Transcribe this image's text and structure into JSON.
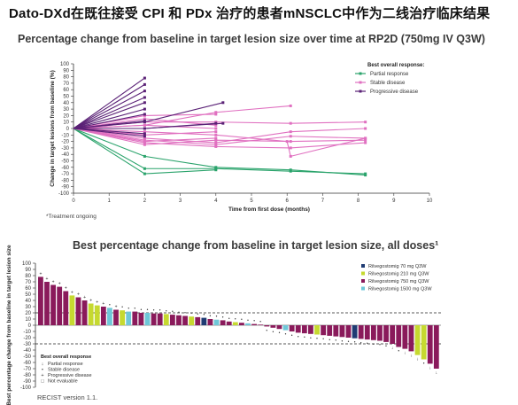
{
  "page": {
    "title": "Dato-DXd在既往接受 CPI 和 PDx 治疗的患者mNSCLC中作为二线治疗临床结果"
  },
  "chart_data": [
    {
      "type": "line",
      "title": "Percentage change from baseline in target lesion size over time at RP2D (750mg IV Q3W)",
      "xlabel": "Time from first dose (months)",
      "ylabel": "Change in target lesions from baseline (%)",
      "xlim": [
        0,
        10
      ],
      "ylim": [
        -100,
        100
      ],
      "x_ticks": [
        0,
        1,
        2,
        3,
        4,
        5,
        6,
        7,
        8,
        9,
        10
      ],
      "y_ticks": [
        100,
        90,
        80,
        70,
        60,
        50,
        40,
        30,
        20,
        10,
        0,
        -10,
        -20,
        -30,
        -40,
        -50,
        -60,
        -70,
        -80,
        -90,
        -100
      ],
      "legend": {
        "title": "Best overall response:",
        "position": "top-right",
        "entries": [
          {
            "label": "Partial response",
            "color": "#2aa36b"
          },
          {
            "label": "Stable disease",
            "color": "#e070c0"
          },
          {
            "label": "Progressive disease",
            "color": "#5a2176"
          }
        ]
      },
      "footnote": "*Treatment ongoing",
      "series": [
        {
          "group": "pr",
          "x": [
            0,
            2,
            4,
            6.1,
            8.2
          ],
          "y": [
            0,
            -43,
            -60,
            -64,
            -72
          ]
        },
        {
          "group": "pr",
          "x": [
            0,
            2,
            4
          ],
          "y": [
            0,
            -70,
            -64
          ]
        },
        {
          "group": "pr",
          "x": [
            0,
            2,
            4,
            6.1,
            8.2
          ],
          "y": [
            0,
            -62,
            -62,
            -66,
            -70
          ]
        },
        {
          "group": "sd",
          "x": [
            0,
            2,
            4,
            6.1,
            8.2
          ],
          "y": [
            0,
            10,
            10,
            8,
            10
          ]
        },
        {
          "group": "sd",
          "x": [
            0,
            2,
            4,
            6.1
          ],
          "y": [
            0,
            5,
            25,
            35
          ]
        },
        {
          "group": "sd",
          "x": [
            0,
            2,
            4,
            6,
            6.1,
            8.2
          ],
          "y": [
            0,
            -5,
            -10,
            -20,
            -43,
            -15
          ]
        },
        {
          "group": "sd",
          "x": [
            0,
            2,
            4,
            6.1,
            8.2
          ],
          "y": [
            0,
            -15,
            -22,
            -5,
            0
          ]
        },
        {
          "group": "sd",
          "x": [
            0,
            2,
            4,
            6.1,
            8.2
          ],
          "y": [
            0,
            -18,
            -25,
            -12,
            -15
          ]
        },
        {
          "group": "sd",
          "x": [
            0,
            2,
            4
          ],
          "y": [
            0,
            15,
            5
          ]
        },
        {
          "group": "sd",
          "x": [
            0,
            2,
            4
          ],
          "y": [
            0,
            -10,
            -5
          ]
        },
        {
          "group": "sd",
          "x": [
            0,
            2,
            4
          ],
          "y": [
            0,
            -20,
            -15
          ]
        },
        {
          "group": "sd",
          "x": [
            0,
            2,
            4
          ],
          "y": [
            0,
            5,
            0
          ]
        },
        {
          "group": "sd",
          "x": [
            0,
            2,
            4
          ],
          "y": [
            0,
            20,
            22
          ]
        },
        {
          "group": "sd",
          "x": [
            0,
            2,
            4,
            6.1,
            8.2
          ],
          "y": [
            0,
            -25,
            -18,
            -20,
            -18
          ]
        },
        {
          "group": "sd",
          "x": [
            0,
            2,
            4,
            6.1,
            8.2
          ],
          "y": [
            0,
            -22,
            -28,
            -30,
            -22
          ]
        },
        {
          "group": "pd",
          "x": [
            0,
            2
          ],
          "y": [
            0,
            78
          ]
        },
        {
          "group": "pd",
          "x": [
            0,
            2
          ],
          "y": [
            0,
            68
          ]
        },
        {
          "group": "pd",
          "x": [
            0,
            2
          ],
          "y": [
            0,
            58
          ]
        },
        {
          "group": "pd",
          "x": [
            0,
            2
          ],
          "y": [
            0,
            48
          ]
        },
        {
          "group": "pd",
          "x": [
            0,
            2
          ],
          "y": [
            0,
            40
          ]
        },
        {
          "group": "pd",
          "x": [
            0,
            2
          ],
          "y": [
            0,
            30
          ]
        },
        {
          "group": "pd",
          "x": [
            0,
            2
          ],
          "y": [
            0,
            22
          ]
        },
        {
          "group": "pd",
          "x": [
            0,
            2
          ],
          "y": [
            0,
            12
          ]
        },
        {
          "group": "pd",
          "x": [
            0,
            2,
            4.2
          ],
          "y": [
            0,
            10,
            40
          ]
        },
        {
          "group": "pd",
          "x": [
            0,
            2
          ],
          "y": [
            0,
            -8
          ]
        },
        {
          "group": "pd",
          "x": [
            0,
            2
          ],
          "y": [
            0,
            -12
          ]
        },
        {
          "group": "pd",
          "x": [
            0,
            2,
            4
          ],
          "y": [
            0,
            0,
            8
          ]
        },
        {
          "group": "pd",
          "x": [
            0,
            2,
            4.2
          ],
          "y": [
            0,
            0,
            8
          ]
        }
      ]
    },
    {
      "type": "bar",
      "title": "Best percentage change from baseline in target lesion size, all doses¹",
      "ylabel": "Best percentage change from baseline in target lesion size",
      "ylim": [
        -100,
        100
      ],
      "y_ticks": [
        100,
        90,
        80,
        70,
        60,
        50,
        40,
        30,
        20,
        10,
        0,
        -10,
        -20,
        -30,
        -40,
        -50,
        -60,
        -70,
        -80,
        -90,
        -100
      ],
      "reference_lines": [
        20,
        -30
      ],
      "legend_doses": {
        "position": "top-right",
        "entries": [
          {
            "label": "Rilvegostomig 70 mg Q3W",
            "color": "#1f3b73"
          },
          {
            "label": "Rilvegostomig 210 mg Q3W",
            "color": "#c6d930"
          },
          {
            "label": "Rilvegostomig 750 mg Q3W",
            "color": "#8a1a5b"
          },
          {
            "label": "Rilvegostomig 1500 mg Q3W",
            "color": "#6fc7d8"
          }
        ]
      },
      "legend_response": {
        "title": "Best overall response",
        "position": "bottom-left",
        "entries": [
          {
            "label": "Partial response",
            "symbol": "↓"
          },
          {
            "label": "Stable disease",
            "symbol": "•"
          },
          {
            "label": "Progressive disease",
            "symbol": "+"
          },
          {
            "label": "Not evaluable",
            "symbol": "□"
          }
        ]
      },
      "footnote": "RECIST version 1.1.",
      "values": [
        78,
        70,
        65,
        62,
        55,
        48,
        45,
        40,
        35,
        32,
        30,
        28,
        25,
        24,
        22,
        22,
        20,
        20,
        19,
        19,
        18,
        17,
        16,
        15,
        14,
        13,
        12,
        10,
        9,
        8,
        6,
        5,
        4,
        3,
        2,
        1,
        -2,
        -4,
        -6,
        -8,
        -10,
        -12,
        -13,
        -14,
        -15,
        -16,
        -17,
        -18,
        -19,
        -20,
        -21,
        -22,
        -23,
        -24,
        -25,
        -27,
        -30,
        -35,
        -38,
        -42,
        -48,
        -55,
        -62,
        -70
      ],
      "doses": [
        "750",
        "750",
        "750",
        "750",
        "750",
        "210",
        "750",
        "750",
        "210",
        "210",
        "750",
        "1500",
        "750",
        "210",
        "1500",
        "750",
        "750",
        "1500",
        "750",
        "750",
        "210",
        "750",
        "750",
        "750",
        "210",
        "750",
        "70",
        "750",
        "1500",
        "750",
        "750",
        "210",
        "750",
        "1500",
        "750",
        "750",
        "750",
        "750",
        "750",
        "1500",
        "750",
        "750",
        "750",
        "750",
        "210",
        "750",
        "750",
        "750",
        "750",
        "750",
        "70",
        "750",
        "750",
        "750",
        "750",
        "750",
        "750",
        "750",
        "750",
        "750",
        "210",
        "210",
        "750",
        "750"
      ],
      "responses": [
        "pd",
        "pd",
        "pd",
        "pd",
        "pd",
        "pd",
        "pd",
        "pd",
        "pd",
        "pd",
        "pd",
        "sd",
        "pd",
        "sd",
        "sd",
        "sd",
        "sd",
        "sd",
        "sd",
        "sd",
        "sd",
        "sd",
        "sd",
        "sd",
        "sd",
        "sd",
        "sd",
        "sd",
        "sd",
        "sd",
        "sd",
        "sd",
        "sd",
        "sd",
        "sd",
        "sd",
        "sd",
        "sd",
        "sd",
        "sd",
        "sd",
        "sd",
        "sd",
        "sd",
        "sd",
        "sd",
        "sd",
        "sd",
        "sd",
        "sd",
        "sd",
        "sd",
        "sd",
        "sd",
        "sd",
        "sd",
        "pr",
        "sd",
        "pr",
        "pr",
        "pr",
        "sd",
        "pr",
        "pr"
      ]
    }
  ],
  "colors": {
    "pr": "#2aa36b",
    "sd": "#e070c0",
    "pd": "#5a2176",
    "dose_70": "#1f3b73",
    "dose_210": "#c6d930",
    "dose_750": "#8a1a5b",
    "dose_1500": "#6fc7d8"
  }
}
